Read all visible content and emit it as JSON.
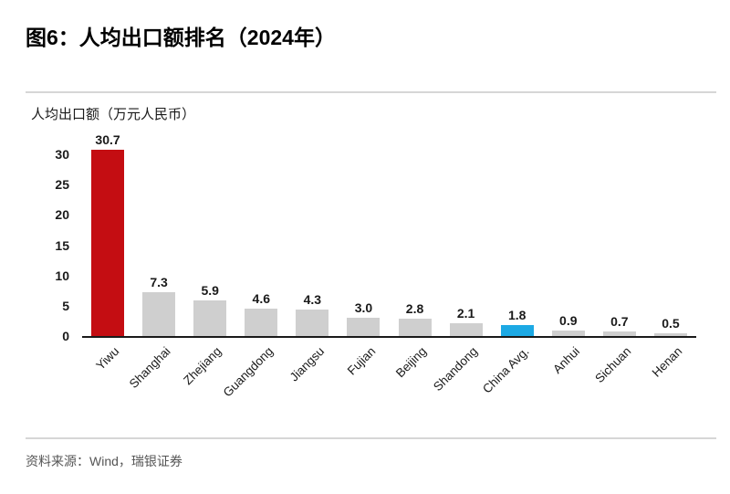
{
  "page": {
    "title": "图6：人均出口额排名（2024年）",
    "source": "资料来源：Wind，瑞银证券"
  },
  "chart_data": {
    "type": "bar",
    "title": "人均出口额排名（2024年）",
    "ylabel": "人均出口额（万元人民币）",
    "categories": [
      "Yiwu",
      "Shanghai",
      "Zhejiang",
      "Guangdong",
      "Jiangsu",
      "Fujian",
      "Beijing",
      "Shandong",
      "China Avg.",
      "Anhui",
      "Sichuan",
      "Henan"
    ],
    "values": [
      30.7,
      7.3,
      5.9,
      4.6,
      4.3,
      3.0,
      2.8,
      2.1,
      1.8,
      0.9,
      0.7,
      0.5
    ],
    "value_labels": [
      "30.7",
      "7.3",
      "5.9",
      "4.6",
      "4.3",
      "3.0",
      "2.8",
      "2.1",
      "1.8",
      "0.9",
      "0.7",
      "0.5"
    ],
    "yticks": [
      0,
      5,
      10,
      15,
      20,
      25,
      30
    ],
    "ylim": [
      0,
      32
    ],
    "grid": false,
    "legend": "none",
    "xlabel": "",
    "colors": {
      "bar_default": "#cfcfcf",
      "bar_highlight_top": "#c40d12",
      "bar_highlight_avg": "#1ca9e4",
      "axis_line": "#1a1a1a"
    },
    "highlights": {
      "red_index": 0,
      "blue_index": 8
    }
  }
}
